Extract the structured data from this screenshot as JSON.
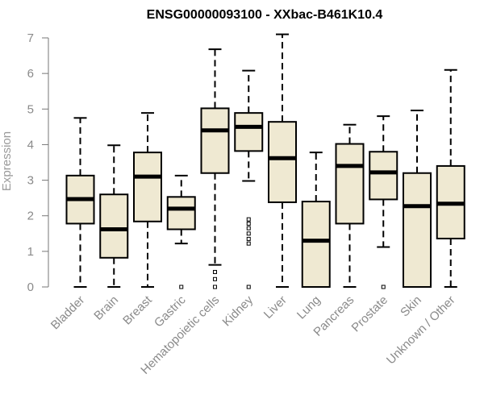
{
  "chart_data": {
    "type": "boxplot",
    "title": "ENSG00000093100 - XXbac-B461K10.4",
    "xlabel": "",
    "ylabel": "Expression",
    "ylim": [
      0,
      7
    ],
    "yticks": [
      0,
      1,
      2,
      3,
      4,
      5,
      6,
      7
    ],
    "box_fill": "#efe9d2",
    "categories": [
      "Bladder",
      "Brain",
      "Breast",
      "Gastric",
      "Hematopoietic cells",
      "Kidney",
      "Liver",
      "Lung",
      "Pancreas",
      "Prostate",
      "Skin",
      "Unknown / Other"
    ],
    "boxes": [
      {
        "name": "Bladder",
        "whisker_low": 0,
        "q1": 1.78,
        "median": 2.47,
        "q3": 3.13,
        "whisker_high": 4.75,
        "outliers": []
      },
      {
        "name": "Brain",
        "whisker_low": 0,
        "q1": 0.82,
        "median": 1.62,
        "q3": 2.6,
        "whisker_high": 3.98,
        "outliers": []
      },
      {
        "name": "Breast",
        "whisker_low": 0,
        "q1": 1.84,
        "median": 3.1,
        "q3": 3.78,
        "whisker_high": 4.89,
        "outliers": []
      },
      {
        "name": "Gastric",
        "whisker_low": 1.22,
        "q1": 1.62,
        "median": 2.2,
        "q3": 2.53,
        "whisker_high": 3.13,
        "outliers": [
          0
        ]
      },
      {
        "name": "Hematopoietic cells",
        "whisker_low": 0.62,
        "q1": 3.2,
        "median": 4.4,
        "q3": 5.02,
        "whisker_high": 6.68,
        "outliers": [
          0,
          0.22,
          0.42
        ]
      },
      {
        "name": "Kidney",
        "whisker_low": 2.98,
        "q1": 3.82,
        "median": 4.5,
        "q3": 4.89,
        "whisker_high": 6.08,
        "outliers": [
          0,
          1.22,
          1.35,
          1.5,
          1.65,
          1.78,
          1.9
        ]
      },
      {
        "name": "Liver",
        "whisker_low": 0,
        "q1": 2.38,
        "median": 3.62,
        "q3": 4.64,
        "whisker_high": 7.1,
        "outliers": []
      },
      {
        "name": "Lung",
        "whisker_low": 0,
        "q1": 0,
        "median": 1.3,
        "q3": 2.4,
        "whisker_high": 3.78,
        "outliers": []
      },
      {
        "name": "Pancreas",
        "whisker_low": 0,
        "q1": 1.78,
        "median": 3.4,
        "q3": 4.02,
        "whisker_high": 4.56,
        "outliers": []
      },
      {
        "name": "Prostate",
        "whisker_low": 1.12,
        "q1": 2.46,
        "median": 3.22,
        "q3": 3.8,
        "whisker_high": 4.8,
        "outliers": [
          0
        ]
      },
      {
        "name": "Skin",
        "whisker_low": 0,
        "q1": 0,
        "median": 2.27,
        "q3": 3.2,
        "whisker_high": 4.96,
        "outliers": []
      },
      {
        "name": "Unknown / Other",
        "whisker_low": 0,
        "q1": 1.36,
        "median": 2.34,
        "q3": 3.4,
        "whisker_high": 6.1,
        "outliers": []
      }
    ]
  }
}
